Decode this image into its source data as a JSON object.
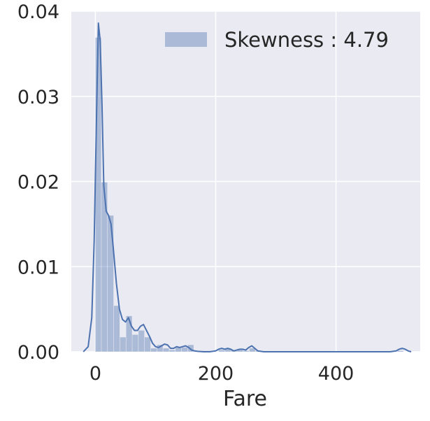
{
  "chart_data": {
    "type": "bar",
    "title": "",
    "xlabel": "Fare",
    "ylabel": "",
    "xlim": [
      -40,
      540
    ],
    "ylim": [
      0,
      0.04
    ],
    "grid": true,
    "legend_position": "top-right",
    "x_ticks": [
      {
        "value": 0,
        "label": "0"
      },
      {
        "value": 200,
        "label": "200"
      },
      {
        "value": 400,
        "label": "400"
      }
    ],
    "y_ticks": [
      {
        "value": 0.0,
        "label": "0.00"
      },
      {
        "value": 0.01,
        "label": "0.01"
      },
      {
        "value": 0.02,
        "label": "0.02"
      },
      {
        "value": 0.03,
        "label": "0.03"
      },
      {
        "value": 0.04,
        "label": "0.04"
      }
    ],
    "bin_width": 10.25,
    "bins_start": 0,
    "histogram": [
      0.0369,
      0.0199,
      0.016,
      0.0054,
      0.0017,
      0.0042,
      0.002,
      0.0025,
      0.0017,
      0.0004,
      0.0008,
      0.0004,
      0.0002,
      0.0005,
      0.0005,
      0.0008,
      0.0001,
      0.0001,
      0.0001,
      0.0,
      0.0002,
      0.0003,
      0.0002,
      0.0002,
      0.0001,
      0.0004,
      0.0001,
      0.0,
      0.0,
      0.0,
      0.0,
      0.0,
      0.0,
      0.0,
      0.0,
      0.0,
      0.0,
      0.0,
      0.0,
      0.0,
      0.0,
      0.0,
      0.0,
      0.0,
      0.0,
      0.0,
      0.0,
      0.0,
      0.0,
      0.0001
    ],
    "kde": {
      "x": [
        -20,
        -12,
        -6,
        -2,
        2,
        5,
        8,
        11,
        14,
        18,
        22,
        26,
        30,
        35,
        40,
        45,
        50,
        55,
        60,
        65,
        70,
        75,
        80,
        85,
        90,
        95,
        100,
        105,
        110,
        115,
        120,
        125,
        130,
        135,
        140,
        145,
        150,
        155,
        160,
        165,
        170,
        180,
        190,
        200,
        205,
        210,
        215,
        220,
        225,
        230,
        235,
        240,
        245,
        250,
        255,
        260,
        265,
        270,
        280,
        300,
        350,
        400,
        450,
        480,
        490,
        500,
        505,
        510,
        515,
        520,
        525
      ],
      "y": [
        0.0,
        0.0006,
        0.004,
        0.013,
        0.028,
        0.0386,
        0.0365,
        0.029,
        0.0195,
        0.0165,
        0.016,
        0.015,
        0.012,
        0.008,
        0.005,
        0.0038,
        0.0035,
        0.004,
        0.003,
        0.0025,
        0.0025,
        0.003,
        0.0032,
        0.0025,
        0.0018,
        0.001,
        0.0006,
        0.0005,
        0.0007,
        0.0009,
        0.0008,
        0.0004,
        0.0004,
        0.0006,
        0.0005,
        0.0006,
        0.0007,
        0.0005,
        0.0002,
        0.0001,
        5e-05,
        0.0,
        0.0,
        0.0001,
        0.0003,
        0.0004,
        0.0003,
        0.0004,
        0.0003,
        0.0001,
        0.0002,
        0.0003,
        0.0003,
        0.0002,
        0.0005,
        0.0007,
        0.0004,
        0.0001,
        0.0,
        0.0,
        0.0,
        0.0,
        0.0,
        0.0,
        0.0,
        0.0001,
        0.0003,
        0.0004,
        0.0003,
        0.0001,
        0.0
      ]
    },
    "series": [
      {
        "name": "Skewness : 4.79",
        "color": "#4c72b0"
      }
    ],
    "colors": {
      "plot_background": "#eaeaf2",
      "grid": "#ffffff",
      "bar_fill": "#4c72b0",
      "bar_opacity": 0.4,
      "kde_line": "#4c72b0",
      "text": "#262626"
    }
  }
}
